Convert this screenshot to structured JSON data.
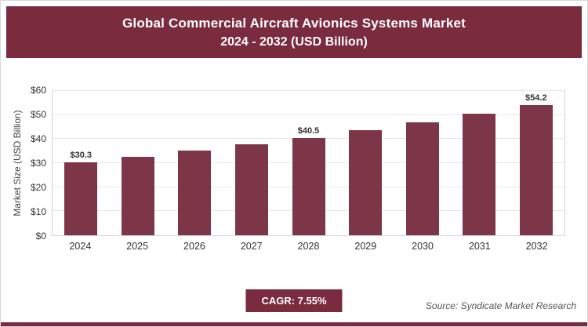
{
  "header": {
    "title_line1": "Global Commercial Aircraft Avionics Systems Market",
    "title_line2": "2024 - 2032 (USD Billion)"
  },
  "footer": {
    "cagr_label": "CAGR: 7.55%",
    "source": "Source: Syndicate Market Research"
  },
  "colors": {
    "maroon": "#7A2B3D",
    "bar": "#7C3648",
    "grid": "#e7e7e7"
  },
  "chart_data": {
    "type": "bar",
    "title": "Global Commercial Aircraft Avionics Systems Market 2024 - 2032 (USD Billion)",
    "categories": [
      "2024",
      "2025",
      "2026",
      "2027",
      "2028",
      "2029",
      "2030",
      "2031",
      "2032"
    ],
    "values": [
      30.3,
      32.6,
      35.1,
      37.7,
      40.5,
      43.6,
      46.9,
      50.4,
      54.2
    ],
    "point_labels": [
      "$30.3",
      "",
      "",
      "",
      "$40.5",
      "",
      "",
      "",
      "$54.2"
    ],
    "xlabel": "",
    "ylabel": "Market Size (USD Billion)",
    "ylim": [
      0,
      60
    ],
    "yticks": [
      "$0",
      "$10",
      "$20",
      "$30",
      "$40",
      "$50",
      "$60"
    ],
    "grid": true,
    "legend": false
  }
}
